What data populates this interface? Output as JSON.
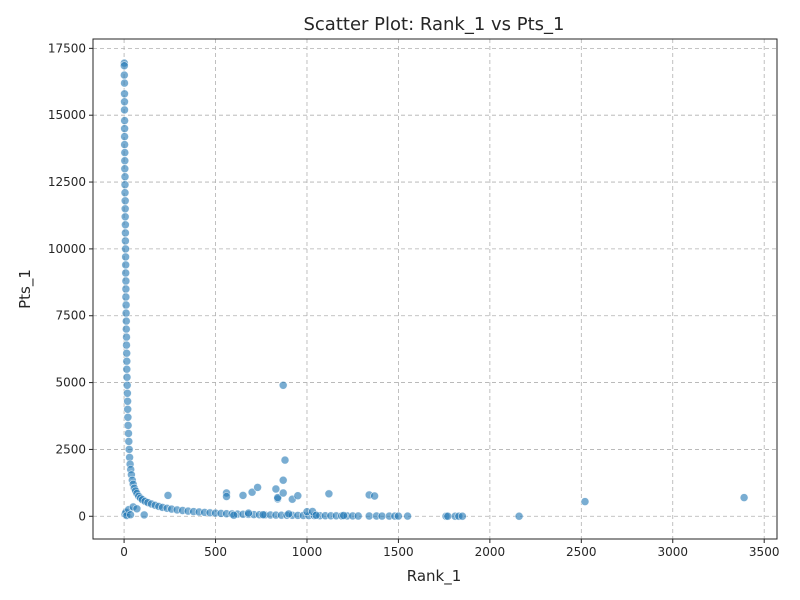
{
  "chart_data": {
    "type": "scatter",
    "title": "Scatter Plot: Rank_1 vs Pts_1",
    "xlabel": "Rank_1",
    "ylabel": "Pts_1",
    "xlim": [
      -170,
      3570
    ],
    "ylim": [
      -850,
      17850
    ],
    "xticks": [
      0,
      500,
      1000,
      1500,
      2000,
      2500,
      3000,
      3500
    ],
    "yticks": [
      0,
      2500,
      5000,
      7500,
      10000,
      12500,
      15000,
      17500
    ],
    "xtick_labels": [
      "0",
      "500",
      "1000",
      "1500",
      "2000",
      "2500",
      "3000",
      "3500"
    ],
    "ytick_labels": [
      "0",
      "2500",
      "5000",
      "7500",
      "10000",
      "12500",
      "15000",
      "17500"
    ],
    "grid": true,
    "grid_style": "dashed",
    "marker_color": "#1f77b4",
    "marker_edge": "#ffffff",
    "marker_alpha": 0.6,
    "points": [
      [
        1,
        16950
      ],
      [
        1,
        16850
      ],
      [
        1,
        16500
      ],
      [
        2,
        16200
      ],
      [
        2,
        15800
      ],
      [
        2,
        15500
      ],
      [
        2,
        15200
      ],
      [
        3,
        14800
      ],
      [
        3,
        14500
      ],
      [
        3,
        14200
      ],
      [
        3,
        13900
      ],
      [
        4,
        13600
      ],
      [
        4,
        13300
      ],
      [
        4,
        13000
      ],
      [
        5,
        12700
      ],
      [
        5,
        12400
      ],
      [
        5,
        12100
      ],
      [
        6,
        11800
      ],
      [
        6,
        11500
      ],
      [
        6,
        11200
      ],
      [
        7,
        10900
      ],
      [
        7,
        10600
      ],
      [
        7,
        10300
      ],
      [
        8,
        10000
      ],
      [
        8,
        9700
      ],
      [
        9,
        9400
      ],
      [
        9,
        9100
      ],
      [
        10,
        8800
      ],
      [
        10,
        8500
      ],
      [
        10,
        8200
      ],
      [
        11,
        7900
      ],
      [
        11,
        7600
      ],
      [
        12,
        7300
      ],
      [
        12,
        7000
      ],
      [
        13,
        6700
      ],
      [
        13,
        6400
      ],
      [
        14,
        6100
      ],
      [
        15,
        5800
      ],
      [
        15,
        5500
      ],
      [
        16,
        5200
      ],
      [
        17,
        4900
      ],
      [
        18,
        4600
      ],
      [
        19,
        4300
      ],
      [
        20,
        4000
      ],
      [
        21,
        3700
      ],
      [
        22,
        3400
      ],
      [
        24,
        3100
      ],
      [
        26,
        2800
      ],
      [
        28,
        2500
      ],
      [
        30,
        2200
      ],
      [
        33,
        1950
      ],
      [
        36,
        1750
      ],
      [
        40,
        1550
      ],
      [
        45,
        1350
      ],
      [
        50,
        1200
      ],
      [
        56,
        1050
      ],
      [
        63,
        950
      ],
      [
        70,
        850
      ],
      [
        80,
        750
      ],
      [
        90,
        680
      ],
      [
        100,
        620
      ],
      [
        115,
        560
      ],
      [
        130,
        510
      ],
      [
        150,
        460
      ],
      [
        170,
        410
      ],
      [
        190,
        370
      ],
      [
        210,
        330
      ],
      [
        235,
        300
      ],
      [
        260,
        270
      ],
      [
        290,
        240
      ],
      [
        320,
        215
      ],
      [
        350,
        195
      ],
      [
        380,
        175
      ],
      [
        410,
        160
      ],
      [
        440,
        145
      ],
      [
        470,
        130
      ],
      [
        500,
        118
      ],
      [
        530,
        108
      ],
      [
        560,
        98
      ],
      [
        590,
        90
      ],
      [
        620,
        82
      ],
      [
        650,
        75
      ],
      [
        680,
        69
      ],
      [
        710,
        63
      ],
      [
        740,
        58
      ],
      [
        770,
        53
      ],
      [
        800,
        49
      ],
      [
        830,
        45
      ],
      [
        860,
        41
      ],
      [
        890,
        38
      ],
      [
        920,
        35
      ],
      [
        950,
        32
      ],
      [
        980,
        29
      ],
      [
        1010,
        27
      ],
      [
        1040,
        25
      ],
      [
        1070,
        23
      ],
      [
        1100,
        21
      ],
      [
        1130,
        19
      ],
      [
        1160,
        17
      ],
      [
        1190,
        15
      ],
      [
        1220,
        14
      ],
      [
        1250,
        13
      ],
      [
        1280,
        12
      ],
      [
        1340,
        10
      ],
      [
        1380,
        9
      ],
      [
        1410,
        8
      ],
      [
        1450,
        7
      ],
      [
        1480,
        6
      ],
      [
        1500,
        6
      ],
      [
        1550,
        5
      ],
      [
        1760,
        3
      ],
      [
        1770,
        3
      ],
      [
        1810,
        2
      ],
      [
        1830,
        2
      ],
      [
        1850,
        2
      ],
      [
        2160,
        1
      ],
      [
        5,
        80
      ],
      [
        10,
        150
      ],
      [
        15,
        30
      ],
      [
        25,
        250
      ],
      [
        35,
        60
      ],
      [
        50,
        350
      ],
      [
        70,
        280
      ],
      [
        110,
        50
      ],
      [
        240,
        780
      ],
      [
        560,
        870
      ],
      [
        560,
        740
      ],
      [
        650,
        780
      ],
      [
        700,
        900
      ],
      [
        730,
        1080
      ],
      [
        830,
        1020
      ],
      [
        840,
        650
      ],
      [
        840,
        700
      ],
      [
        870,
        4900
      ],
      [
        880,
        2100
      ],
      [
        870,
        1350
      ],
      [
        870,
        870
      ],
      [
        920,
        640
      ],
      [
        950,
        770
      ],
      [
        1000,
        170
      ],
      [
        1030,
        180
      ],
      [
        1120,
        840
      ],
      [
        1340,
        800
      ],
      [
        1370,
        760
      ],
      [
        2520,
        550
      ],
      [
        3390,
        700
      ],
      [
        600,
        40
      ],
      [
        680,
        120
      ],
      [
        760,
        60
      ],
      [
        900,
        90
      ],
      [
        1050,
        40
      ],
      [
        1200,
        30
      ]
    ]
  }
}
